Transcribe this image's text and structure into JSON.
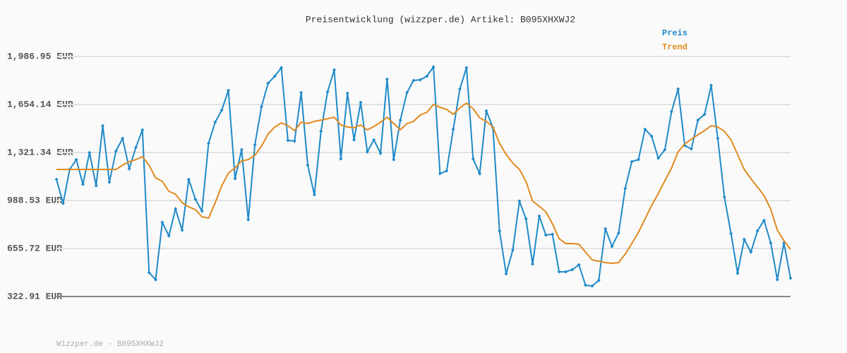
{
  "chart_data": {
    "type": "line",
    "title": "Preisentwicklung (wizzper.de) Artikel: B095XHXWJ2",
    "footer": "Wizzper.de - B095XHXWJ2",
    "ylim": [
      322.91,
      1986.95
    ],
    "yticks": [
      {
        "value": 322.91,
        "label": "322.91 EUR"
      },
      {
        "value": 655.72,
        "label": "655.72 EUR"
      },
      {
        "value": 988.53,
        "label": "988.53 EUR"
      },
      {
        "value": 1321.34,
        "label": "1,321.34 EUR"
      },
      {
        "value": 1654.14,
        "label": "1,654.14 EUR"
      },
      {
        "value": 1986.95,
        "label": "1,986.95 EUR"
      }
    ],
    "grid": true,
    "series": [
      {
        "name": "Preis",
        "color": "#1f8ac9",
        "markers": true,
        "values": [
          1135,
          969,
          1204,
          1272,
          1101,
          1321,
          1091,
          1507,
          1116,
          1331,
          1419,
          1209,
          1356,
          1478,
          489,
          440,
          837,
          744,
          930,
          783,
          1135,
          998,
          915,
          1385,
          1532,
          1615,
          1752,
          1140,
          1341,
          856,
          1375,
          1639,
          1801,
          1850,
          1909,
          1405,
          1400,
          1737,
          1233,
          1028,
          1468,
          1742,
          1894,
          1277,
          1732,
          1409,
          1669,
          1326,
          1409,
          1316,
          1830,
          1272,
          1546,
          1737,
          1821,
          1825,
          1850,
          1914,
          1175,
          1194,
          1483,
          1762,
          1909,
          1277,
          1175,
          1610,
          1493,
          778,
          480,
          646,
          984,
          861,
          548,
          881,
          749,
          754,
          494,
          494,
          509,
          543,
          401,
          396,
          435,
          793,
          670,
          763,
          1072,
          1258,
          1272,
          1483,
          1434,
          1282,
          1341,
          1605,
          1762,
          1370,
          1346,
          1546,
          1586,
          1786,
          1419,
          1013,
          759,
          484,
          719,
          631,
          778,
          851,
          695,
          440,
          695,
          450
        ]
      },
      {
        "name": "Trend",
        "color": "#e08a1e",
        "markers": false,
        "values": [
          1204,
          1204,
          1204,
          1204,
          1204,
          1204,
          1204,
          1204,
          1204,
          1204,
          1233,
          1258,
          1272,
          1292,
          1233,
          1145,
          1121,
          1052,
          1033,
          974,
          944,
          925,
          876,
          866,
          974,
          1091,
          1179,
          1214,
          1263,
          1272,
          1302,
          1365,
          1449,
          1498,
          1527,
          1507,
          1473,
          1532,
          1522,
          1537,
          1546,
          1556,
          1566,
          1512,
          1498,
          1493,
          1512,
          1478,
          1502,
          1532,
          1566,
          1522,
          1478,
          1522,
          1537,
          1581,
          1600,
          1654,
          1635,
          1620,
          1586,
          1630,
          1664,
          1625,
          1561,
          1537,
          1498,
          1385,
          1307,
          1248,
          1204,
          1121,
          984,
          949,
          910,
          827,
          724,
          690,
          690,
          685,
          631,
          577,
          568,
          558,
          553,
          558,
          617,
          690,
          768,
          861,
          954,
          1037,
          1126,
          1214,
          1326,
          1380,
          1414,
          1444,
          1473,
          1507,
          1498,
          1468,
          1409,
          1307,
          1204,
          1140,
          1082,
          1023,
          930,
          783,
          710,
          651
        ]
      }
    ]
  }
}
